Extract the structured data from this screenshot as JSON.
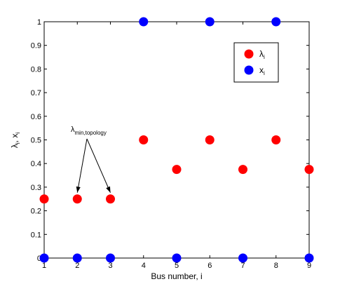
{
  "chart_data": {
    "type": "scatter",
    "title": "",
    "xlabel": "Bus number, i",
    "ylabel": "λ_i, x_i",
    "xlim": [
      1,
      9
    ],
    "ylim": [
      0,
      1
    ],
    "x_ticks": [
      "1",
      "2",
      "3",
      "4",
      "5",
      "6",
      "7",
      "8",
      "9"
    ],
    "y_ticks": [
      "0",
      "0.1",
      "0.2",
      "0.3",
      "0.4",
      "0.5",
      "0.6",
      "0.7",
      "0.8",
      "0.9",
      "1"
    ],
    "grid": false,
    "legend_position": "top-right",
    "series": [
      {
        "name": "λ_i",
        "label_main": "λ",
        "label_sub": "i",
        "color": "#ff0000",
        "x": [
          1,
          2,
          3,
          4,
          5,
          6,
          7,
          8,
          9
        ],
        "y": [
          0.25,
          0.25,
          0.25,
          0.5,
          0.375,
          0.5,
          0.375,
          0.5,
          0.375
        ]
      },
      {
        "name": "x_i",
        "label_main": "x",
        "label_sub": "i",
        "color": "#0000ff",
        "x": [
          1,
          2,
          3,
          4,
          5,
          6,
          7,
          8,
          9
        ],
        "y": [
          0,
          0,
          0,
          1,
          0,
          1,
          0,
          1,
          0
        ]
      }
    ],
    "ylabel_parts": {
      "a": "λ",
      "a_sub": "i",
      "sep": ", x",
      "b_sub": "i"
    },
    "annotation": {
      "text_main": "λ",
      "text_sub": "min,topology",
      "targets": [
        [
          2,
          0.25
        ],
        [
          3,
          0.25
        ]
      ]
    }
  }
}
